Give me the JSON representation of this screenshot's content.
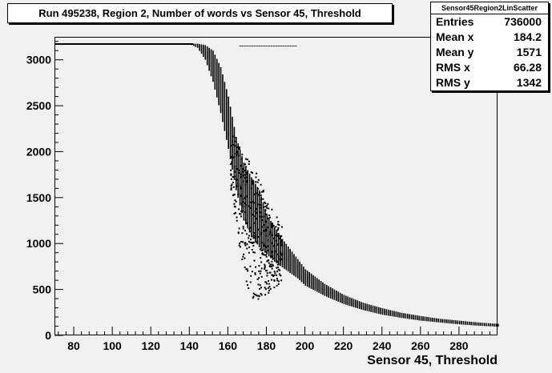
{
  "title": "Run 495238, Region 2, Number of words vs Sensor 45, Threshold",
  "stats": {
    "name": "Sensor45Region2LinScatter",
    "rows": [
      {
        "label": "Entries",
        "value": "736000"
      },
      {
        "label": "Mean x",
        "value": "184.2"
      },
      {
        "label": "Mean y",
        "value": "1571"
      },
      {
        "label": "RMS x",
        "value": "66.28"
      },
      {
        "label": "RMS y",
        "value": "1342"
      }
    ]
  },
  "chart_data": {
    "type": "scatter",
    "title": "Run 495238, Region 2, Number of words vs Sensor 45, Threshold",
    "xlabel": "Sensor 45, Threshold",
    "ylabel": "",
    "xlim": [
      70,
      300
    ],
    "ylim": [
      0,
      3250
    ],
    "x_ticks": [
      80,
      100,
      120,
      140,
      160,
      180,
      200,
      220,
      240,
      260,
      280
    ],
    "y_ticks": [
      0,
      500,
      1000,
      1500,
      2000,
      2500,
      3000
    ],
    "grid": false,
    "legend": "none",
    "band": [
      {
        "x": 70,
        "y_low": 3170,
        "y_high": 3175
      },
      {
        "x": 140,
        "y_low": 3170,
        "y_high": 3175
      },
      {
        "x": 144,
        "y_low": 3130,
        "y_high": 3175
      },
      {
        "x": 148,
        "y_low": 3000,
        "y_high": 3160
      },
      {
        "x": 152,
        "y_low": 2760,
        "y_high": 3100
      },
      {
        "x": 156,
        "y_low": 2420,
        "y_high": 2920
      },
      {
        "x": 160,
        "y_low": 2030,
        "y_high": 2600
      },
      {
        "x": 164,
        "y_low": 1580,
        "y_high": 2160
      },
      {
        "x": 168,
        "y_low": 1250,
        "y_high": 1880
      },
      {
        "x": 172,
        "y_low": 1080,
        "y_high": 1720
      },
      {
        "x": 176,
        "y_low": 960,
        "y_high": 1580
      },
      {
        "x": 180,
        "y_low": 880,
        "y_high": 1310
      },
      {
        "x": 184,
        "y_low": 800,
        "y_high": 1180
      },
      {
        "x": 188,
        "y_low": 740,
        "y_high": 1050
      },
      {
        "x": 192,
        "y_low": 680,
        "y_high": 940
      },
      {
        "x": 196,
        "y_low": 620,
        "y_high": 830
      },
      {
        "x": 200,
        "y_low": 540,
        "y_high": 720
      },
      {
        "x": 210,
        "y_low": 430,
        "y_high": 560
      },
      {
        "x": 220,
        "y_low": 340,
        "y_high": 440
      },
      {
        "x": 230,
        "y_low": 275,
        "y_high": 355
      },
      {
        "x": 240,
        "y_low": 225,
        "y_high": 295
      },
      {
        "x": 250,
        "y_low": 190,
        "y_high": 245
      },
      {
        "x": 260,
        "y_low": 160,
        "y_high": 210
      },
      {
        "x": 270,
        "y_low": 140,
        "y_high": 180
      },
      {
        "x": 280,
        "y_low": 120,
        "y_high": 160
      },
      {
        "x": 290,
        "y_low": 105,
        "y_high": 140
      },
      {
        "x": 300,
        "y_low": 95,
        "y_high": 125
      }
    ],
    "top_segment": {
      "x_start": 166,
      "x_end": 196,
      "y": 3150
    },
    "scatter_region": {
      "x_min": 161,
      "x_max": 188,
      "y_min": 380,
      "y_max": 2180
    }
  }
}
